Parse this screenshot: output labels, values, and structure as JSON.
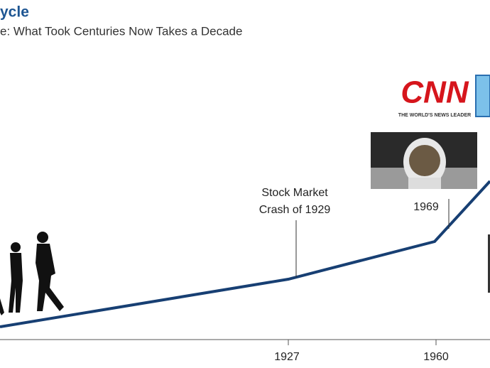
{
  "header": {
    "title": "ycle",
    "subtitle": "e: What Took Centuries Now Takes a Decade"
  },
  "timeline": {
    "ticks": [
      "1927",
      "1960"
    ]
  },
  "annotations": [
    {
      "label": [
        "Stock Market",
        "Crash of 1929"
      ]
    },
    {
      "label": [
        "1969"
      ]
    }
  ],
  "logo": {
    "name": "CNN",
    "tagline": "THE WORLD'S NEWS LEADER"
  }
}
